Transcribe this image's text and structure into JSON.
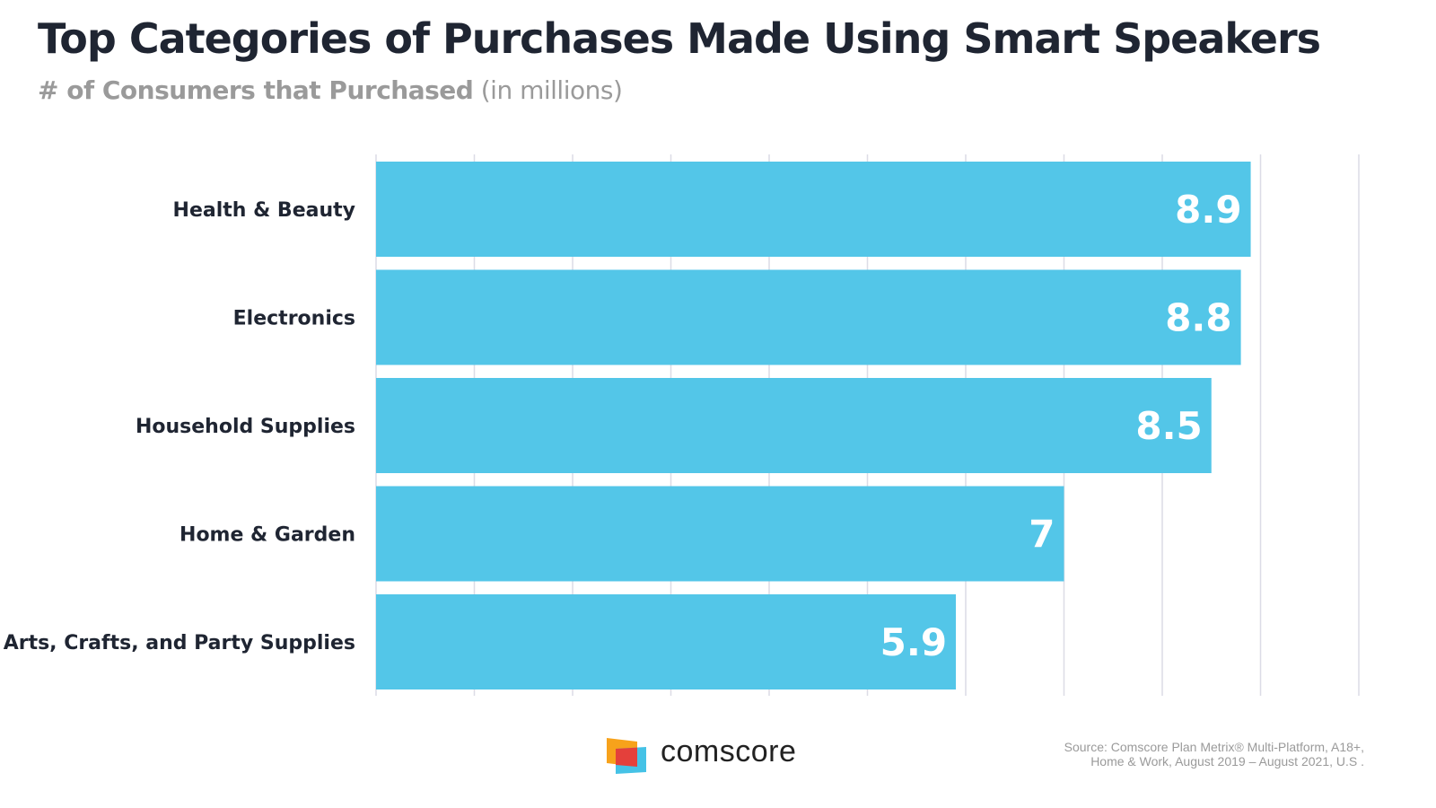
{
  "chart_data": {
    "type": "bar",
    "orientation": "horizontal",
    "title": "Top Categories of Purchases Made Using Smart Speakers",
    "subtitle_bold": "# of Consumers that Purchased",
    "subtitle_unit": "(in millions)",
    "categories": [
      "Health & Beauty",
      "Electronics",
      "Household Supplies",
      "Home & Garden",
      "Arts, Crafts, and Party Supplies"
    ],
    "values": [
      8.9,
      8.8,
      8.5,
      7,
      5.9
    ],
    "data_labels": [
      "8.9",
      "8.8",
      "8.5",
      "7",
      "5.9"
    ],
    "xlim": [
      0,
      10
    ],
    "grid": true,
    "bar_color": "#53c6e8",
    "label_color": "#ffffff"
  },
  "footer": {
    "brand": "comscore",
    "source_line1": "Source: Comscore Plan Metrix® Multi-Platform, A18+,",
    "source_line2": "Home & Work, August 2019 – August  2021, U.S ."
  }
}
